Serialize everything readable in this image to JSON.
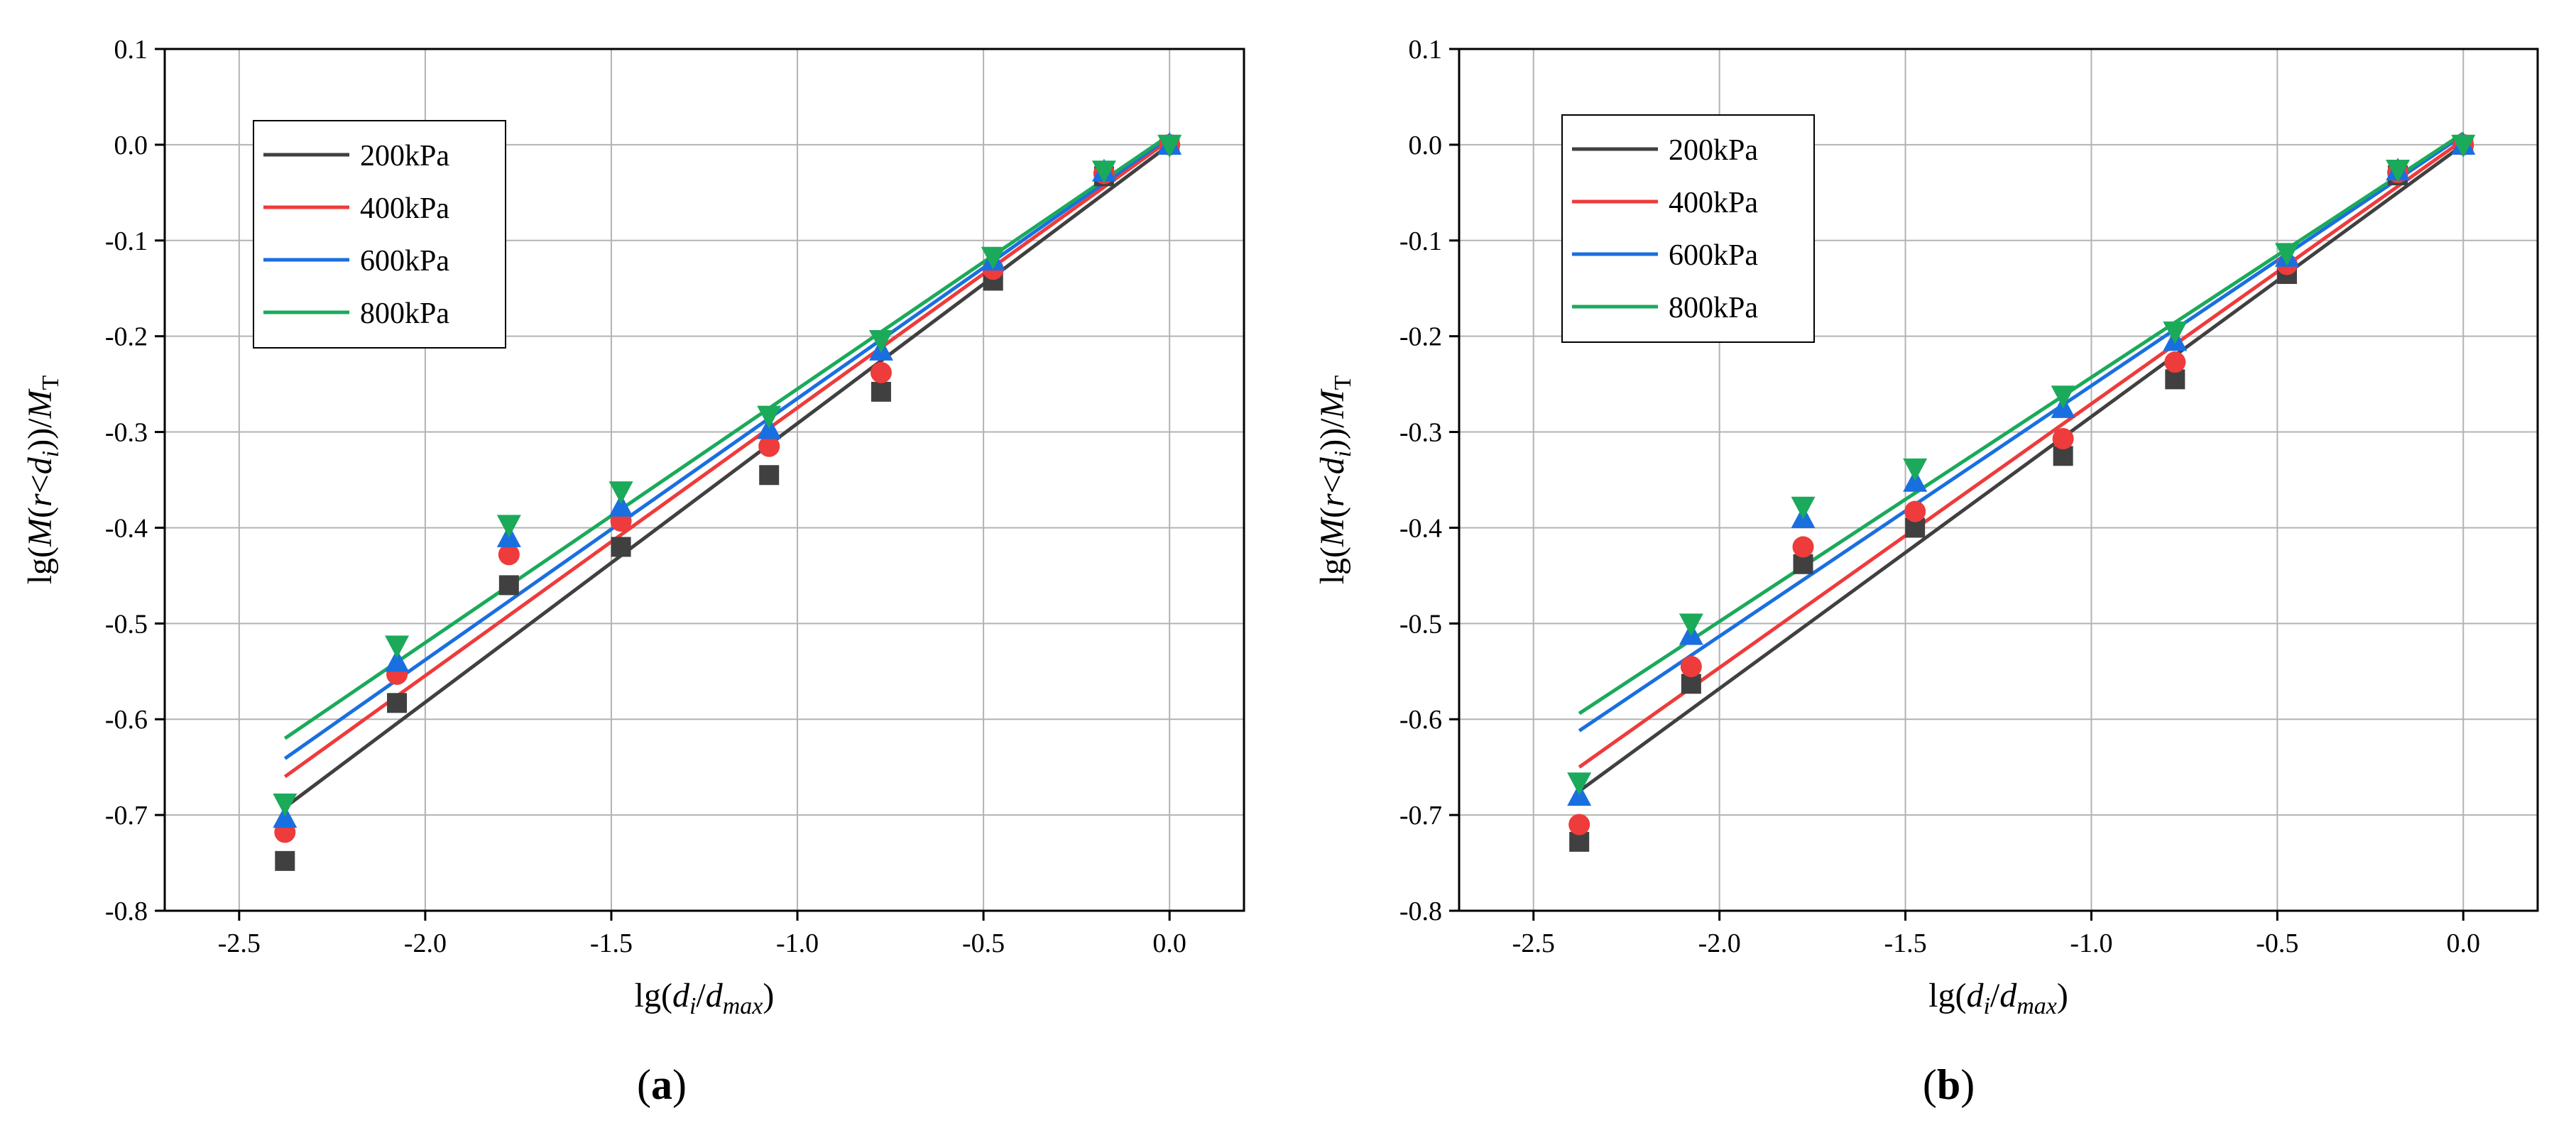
{
  "chart_data": [
    {
      "type": "scatter",
      "panel_label": "a",
      "xlim": [
        -2.7,
        0.2
      ],
      "ylim": [
        -0.8,
        0.1
      ],
      "xticks": [
        -2.5,
        -2.0,
        -1.5,
        -1.0,
        -0.5,
        0.0
      ],
      "yticks": [
        0.1,
        0.0,
        -0.1,
        -0.2,
        -0.3,
        -0.4,
        -0.5,
        -0.6,
        -0.7,
        -0.8
      ],
      "grid": true,
      "legend_position": "top-left",
      "x": [
        -2.377,
        -2.076,
        -1.775,
        -1.474,
        -1.076,
        -0.775,
        -0.474,
        -0.176,
        0.0
      ],
      "series": [
        {
          "name": "200kPa",
          "color": "#404040",
          "marker": "square",
          "values": [
            -0.748,
            -0.583,
            -0.46,
            -0.42,
            -0.345,
            -0.258,
            -0.142,
            -0.033,
            0.0
          ],
          "fit": [
            -0.692,
            0.0
          ]
        },
        {
          "name": "400kPa",
          "color": "#ee3b3b",
          "marker": "circle",
          "values": [
            -0.718,
            -0.553,
            -0.428,
            -0.393,
            -0.315,
            -0.238,
            -0.13,
            -0.03,
            0.0
          ],
          "fit": [
            -0.66,
            0.005
          ]
        },
        {
          "name": "600kPa",
          "color": "#1a6fe0",
          "marker": "triangle-up",
          "values": [
            -0.703,
            -0.54,
            -0.41,
            -0.378,
            -0.297,
            -0.215,
            -0.121,
            -0.028,
            0.0
          ],
          "fit": [
            -0.641,
            0.008
          ]
        },
        {
          "name": "800kPa",
          "color": "#1aaa5a",
          "marker": "triangle-down",
          "values": [
            -0.688,
            -0.523,
            -0.397,
            -0.362,
            -0.283,
            -0.204,
            -0.117,
            -0.027,
            0.0
          ],
          "fit": [
            -0.62,
            0.01
          ]
        }
      ]
    },
    {
      "type": "scatter",
      "panel_label": "b",
      "xlim": [
        -2.7,
        0.2
      ],
      "ylim": [
        -0.8,
        0.1
      ],
      "xticks": [
        -2.5,
        -2.0,
        -1.5,
        -1.0,
        -0.5,
        0.0
      ],
      "yticks": [
        0.1,
        0.0,
        -0.1,
        -0.2,
        -0.3,
        -0.4,
        -0.5,
        -0.6,
        -0.7,
        -0.8
      ],
      "grid": true,
      "legend_position": "top-left",
      "x": [
        -2.377,
        -2.076,
        -1.775,
        -1.474,
        -1.076,
        -0.775,
        -0.474,
        -0.176,
        0.0
      ],
      "series": [
        {
          "name": "200kPa",
          "color": "#404040",
          "marker": "square",
          "values": [
            -0.728,
            -0.563,
            -0.438,
            -0.4,
            -0.325,
            -0.245,
            -0.135,
            -0.032,
            0.0
          ],
          "fit": [
            -0.675,
            0.0
          ]
        },
        {
          "name": "400kPa",
          "color": "#ee3b3b",
          "marker": "circle",
          "values": [
            -0.71,
            -0.545,
            -0.42,
            -0.383,
            -0.307,
            -0.227,
            -0.125,
            -0.029,
            0.0
          ],
          "fit": [
            -0.65,
            0.005
          ]
        },
        {
          "name": "600kPa",
          "color": "#1a6fe0",
          "marker": "triangle-up",
          "values": [
            -0.68,
            -0.512,
            -0.39,
            -0.352,
            -0.275,
            -0.205,
            -0.117,
            -0.027,
            0.0
          ],
          "fit": [
            -0.612,
            0.01
          ]
        },
        {
          "name": "800kPa",
          "color": "#1aaa5a",
          "marker": "triangle-down",
          "values": [
            -0.666,
            -0.5,
            -0.378,
            -0.338,
            -0.262,
            -0.195,
            -0.113,
            -0.026,
            0.0
          ],
          "fit": [
            -0.594,
            0.012
          ]
        }
      ]
    }
  ]
}
